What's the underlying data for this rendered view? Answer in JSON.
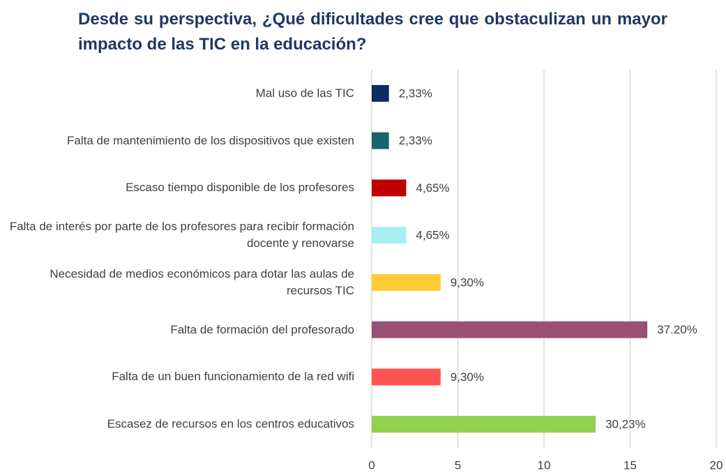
{
  "chart_data": {
    "type": "bar",
    "orientation": "horizontal",
    "title": "Desde su perspectiva, ¿Qué dificultades cree que obstaculizan un mayor impacto de las TIC en la educación?",
    "categories": [
      "Mal uso de las TIC",
      "Falta de mantenimiento de los dispositivos que existen",
      "Escaso tiempo disponible de los profesores",
      "Falta de interés por parte de los profesores para recibir formación docente y renovarse",
      "Necesidad de medios económicos para dotar las aulas de recursos TIC",
      "Falta de formación del profesorado",
      "Falta de un buen funcionamiento de la red wifi",
      "Escasez de recursos en los centros educativos"
    ],
    "values": [
      1,
      1,
      2,
      2,
      4,
      16,
      4,
      13
    ],
    "value_labels": [
      "2,33%",
      "2,33%",
      "4,65%",
      "4,65%",
      "9,30%",
      "37.20%",
      "9,30%",
      "30,23%"
    ],
    "colors": [
      "#0e2a5e",
      "#17666a",
      "#c00000",
      "#a9eef0",
      "#ffcc33",
      "#9a4f76",
      "#ff5252",
      "#92d050"
    ],
    "xlim": [
      0,
      20
    ],
    "xticks": [
      0,
      5,
      10,
      15,
      20
    ],
    "grid": true
  }
}
